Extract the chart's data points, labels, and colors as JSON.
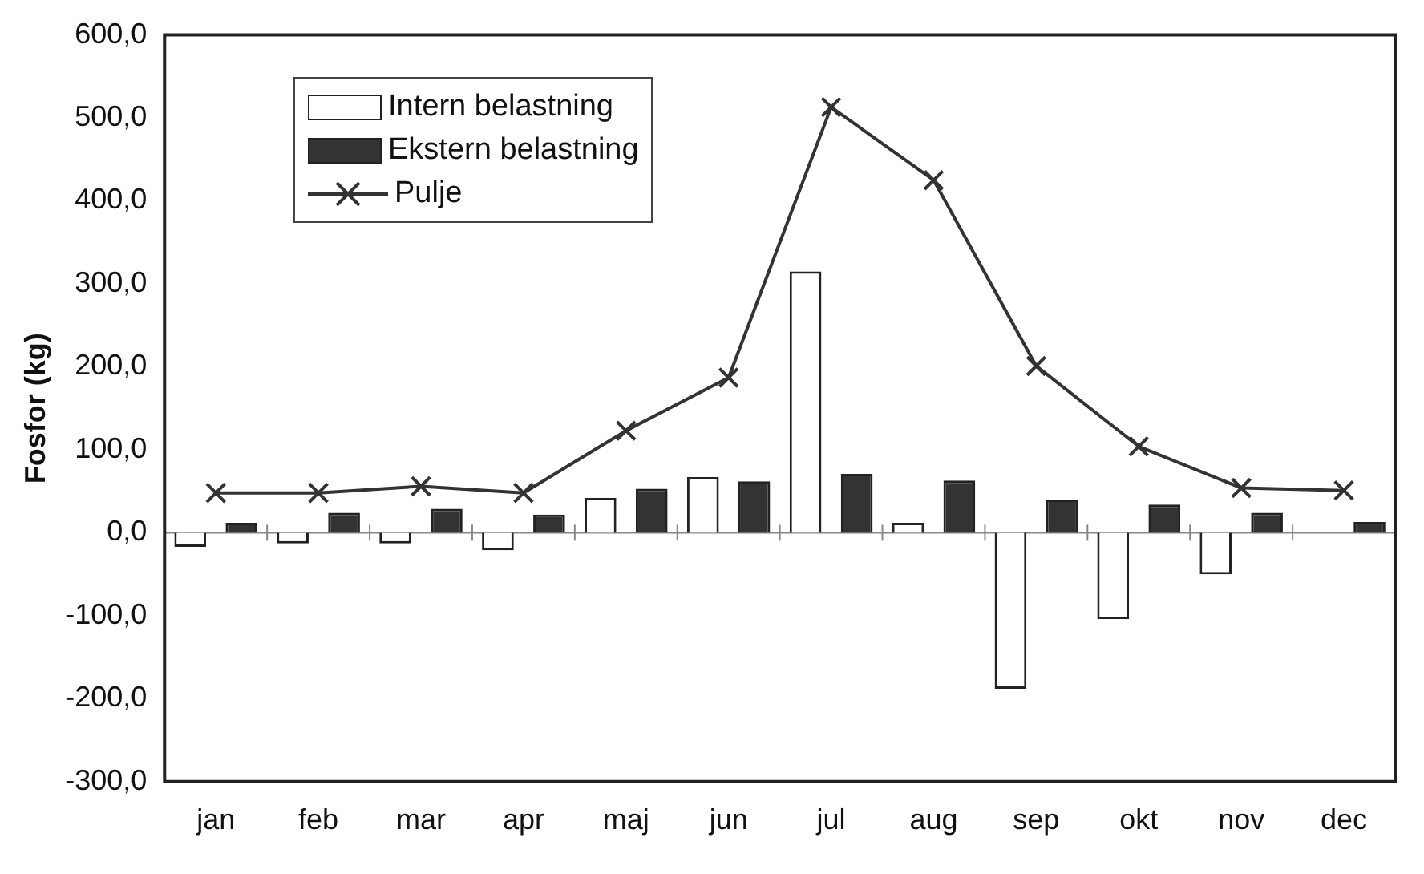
{
  "chart_data": {
    "type": "bar",
    "ylabel": "Fosfor (kg)",
    "categories": [
      "jan",
      "feb",
      "mar",
      "apr",
      "maj",
      "jun",
      "jul",
      "aug",
      "sep",
      "okt",
      "nov",
      "dec"
    ],
    "series": [
      {
        "name": "Intern belastning",
        "color": "#ffffff",
        "values": [
          -17,
          -13,
          -13,
          -21,
          42,
          67,
          315,
          12,
          -188,
          -104,
          -50,
          null
        ]
      },
      {
        "name": "Ekstern belastning",
        "color": "#333333",
        "values": [
          12,
          24,
          29,
          22,
          53,
          62,
          71,
          63,
          40,
          34,
          24,
          13
        ]
      },
      {
        "name": "Pulje",
        "type": "line",
        "color": "#333333",
        "marker": "cross",
        "values": [
          48,
          48,
          56,
          48,
          123,
          187,
          513,
          425,
          201,
          104,
          54,
          51
        ]
      }
    ],
    "ylim": [
      -300,
      600
    ],
    "yticks": [
      {
        "value": 600,
        "label": "600,0"
      },
      {
        "value": 500,
        "label": "500,0"
      },
      {
        "value": 400,
        "label": "400,0"
      },
      {
        "value": 300,
        "label": "300,0"
      },
      {
        "value": 200,
        "label": "200,0"
      },
      {
        "value": 100,
        "label": "100,0"
      },
      {
        "value": 0,
        "label": "0,0"
      },
      {
        "value": -100,
        "label": "-100,0"
      },
      {
        "value": -200,
        "label": "-200,0"
      },
      {
        "value": -300,
        "label": "-300,0"
      }
    ],
    "ref_lines": [
      {
        "axis": "y",
        "value": 0,
        "color": "#888888"
      }
    ],
    "grid": false,
    "legend": "top left"
  }
}
